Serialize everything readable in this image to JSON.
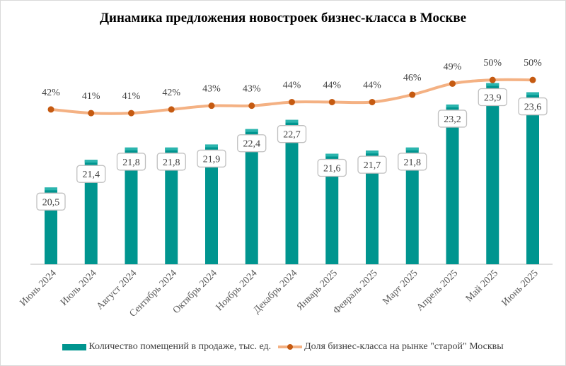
{
  "chart_data": {
    "type": "bar+line",
    "title": "Динамика предложения новостроек бизнес-класса в Москве",
    "categories": [
      "Июнь 2024",
      "Июль 2024",
      "Август 2024",
      "Сентябрь 2024",
      "Октябрь 2024",
      "Ноябрь 2024",
      "Декабрь 2024",
      "Январь 2025",
      "Февраль 2025",
      "Март 2025",
      "Апрель 2025",
      "Май 2025",
      "Июнь 2025"
    ],
    "series": [
      {
        "name": "Количество помещений в продаже, тыс. ед.",
        "type": "bar",
        "axis": "primary",
        "color": "#00958f",
        "values": [
          20.5,
          21.4,
          21.8,
          21.8,
          21.9,
          22.4,
          22.7,
          21.6,
          21.7,
          21.8,
          23.2,
          23.9,
          23.6
        ],
        "labels": [
          "20,5",
          "21,4",
          "21,8",
          "21,8",
          "21,9",
          "22,4",
          "22,7",
          "21,6",
          "21,7",
          "21,8",
          "23,2",
          "23,9",
          "23,6"
        ]
      },
      {
        "name": "Доля бизнес-класса на рынке \"старой\" Москвы",
        "type": "line",
        "axis": "secondary",
        "color": "#f4b183",
        "marker_color": "#c55a11",
        "values": [
          42,
          41,
          41,
          42,
          43,
          43,
          44,
          44,
          44,
          46,
          49,
          50,
          50
        ],
        "labels": [
          "42%",
          "41%",
          "41%",
          "42%",
          "43%",
          "43%",
          "44%",
          "44%",
          "44%",
          "46%",
          "49%",
          "50%",
          "50%"
        ]
      }
    ],
    "ylim_primary": [
      18,
      25.2
    ],
    "ylim_secondary": [
      0,
      60
    ],
    "grid": false,
    "legend": "bottom"
  }
}
